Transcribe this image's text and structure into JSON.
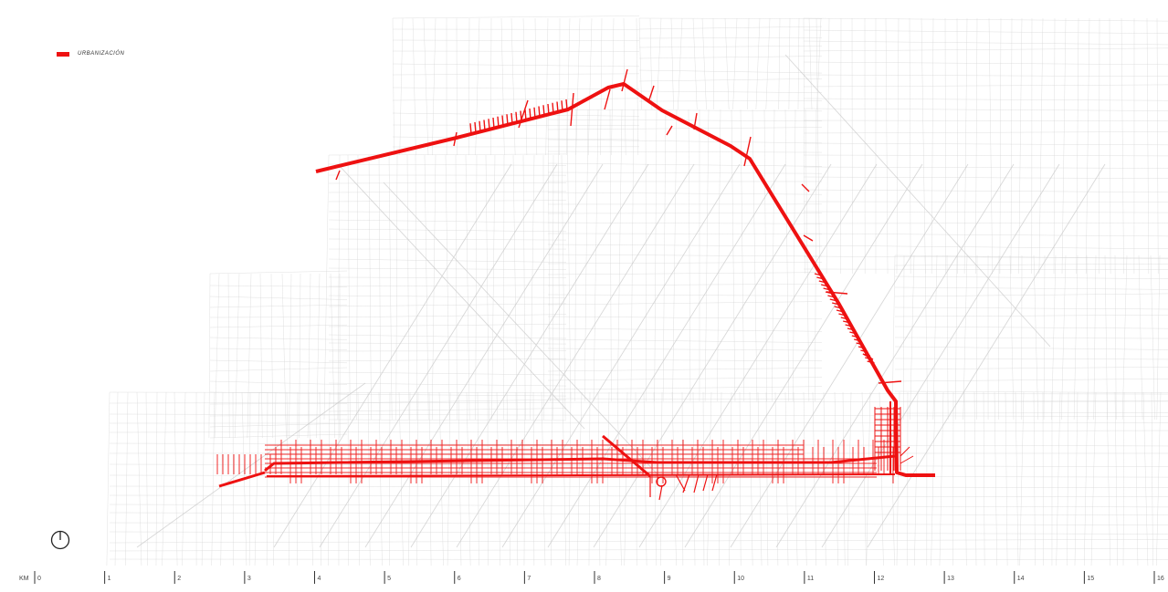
{
  "legend": {
    "label": "URBANIZACIÓN",
    "swatch_color": "#ee1111"
  },
  "colors": {
    "route": "#ee1111",
    "street_grid": "#d4d4d4",
    "background": "#ffffff"
  },
  "north_arrow": {
    "icon": "north-arrow-icon"
  },
  "scale_bar": {
    "unit_label": "KM",
    "ticks": [
      "0",
      "1",
      "2",
      "3",
      "4",
      "5",
      "6",
      "7",
      "8",
      "9",
      "10",
      "11",
      "12",
      "13",
      "14",
      "15",
      "16"
    ]
  }
}
